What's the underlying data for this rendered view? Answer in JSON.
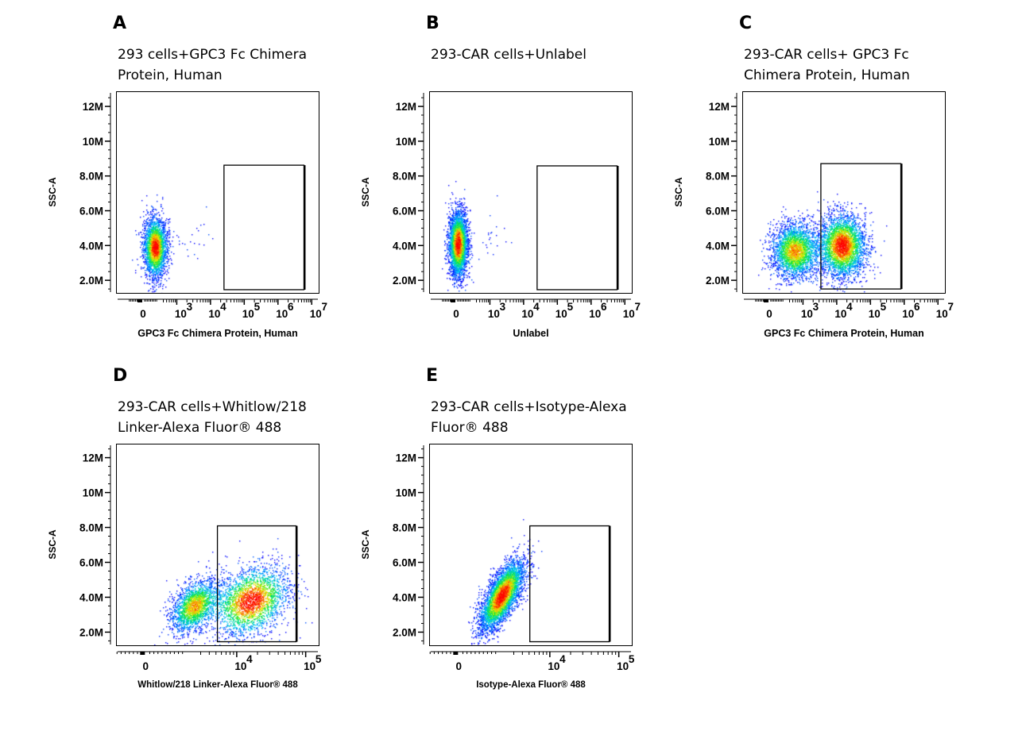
{
  "chart_data": [
    {
      "type": "scatter",
      "letter": "A",
      "title_lines": [
        "293 cells+GPC3 Fc Chimera",
        "Protein, Human"
      ],
      "xlabel": "GPC3 Fc Chimera Protein, Human",
      "ylabel": "SSC-A",
      "x_scale": "biexponential (display decades, 0 shown at 2)",
      "x_range": [
        1.2,
        7.23
      ],
      "y_range": [
        1.23,
        12.87
      ],
      "x_ticks": [
        {
          "v": 2,
          "label": "0",
          "exp": ""
        },
        {
          "v": 3,
          "label": "10",
          "exp": "3"
        },
        {
          "v": 4,
          "label": "10",
          "exp": "4"
        },
        {
          "v": 5,
          "label": "10",
          "exp": "5"
        },
        {
          "v": 6,
          "label": "10",
          "exp": "6"
        },
        {
          "v": 7,
          "label": "10",
          "exp": "7"
        }
      ],
      "y_ticks": [
        {
          "v": 2,
          "label": "2.0M"
        },
        {
          "v": 4,
          "label": "4.0M"
        },
        {
          "v": 6,
          "label": "6.0M"
        },
        {
          "v": 8,
          "label": "8.0M"
        },
        {
          "v": 10,
          "label": "10M"
        },
        {
          "v": 12,
          "label": "12M"
        }
      ],
      "gate": {
        "x": [
          4.4,
          6.77
        ],
        "y": [
          1.46,
          8.62
        ]
      },
      "populations": [
        {
          "x": 2.35,
          "y": 3.9,
          "sx": 0.17,
          "sy": 0.85,
          "rho": 0,
          "n": 2600
        },
        {
          "x": 3.4,
          "y": 4.6,
          "sx": 0.45,
          "sy": 0.7,
          "rho": 0,
          "n": 25
        }
      ]
    },
    {
      "type": "scatter",
      "letter": "B",
      "title_lines": [
        "293-CAR cells+Unlabel"
      ],
      "xlabel": "Unlabel",
      "ylabel": "SSC-A",
      "x_range": [
        1.2,
        7.23
      ],
      "y_range": [
        1.23,
        12.87
      ],
      "x_ticks": [
        {
          "v": 2,
          "label": "0",
          "exp": ""
        },
        {
          "v": 3,
          "label": "10",
          "exp": "3"
        },
        {
          "v": 4,
          "label": "10",
          "exp": "4"
        },
        {
          "v": 5,
          "label": "10",
          "exp": "5"
        },
        {
          "v": 6,
          "label": "10",
          "exp": "6"
        },
        {
          "v": 7,
          "label": "10",
          "exp": "7"
        }
      ],
      "y_ticks": [
        {
          "v": 2,
          "label": "2.0M"
        },
        {
          "v": 4,
          "label": "4.0M"
        },
        {
          "v": 6,
          "label": "6.0M"
        },
        {
          "v": 8,
          "label": "8.0M"
        },
        {
          "v": 10,
          "label": "10M"
        },
        {
          "v": 12,
          "label": "12M"
        }
      ],
      "gate": {
        "x": [
          4.4,
          6.77
        ],
        "y": [
          1.46,
          8.58
        ]
      },
      "populations": [
        {
          "x": 2.05,
          "y": 4.1,
          "sx": 0.14,
          "sy": 0.95,
          "rho": 0,
          "n": 3200
        },
        {
          "x": 2.9,
          "y": 4.6,
          "sx": 0.35,
          "sy": 0.6,
          "rho": 0,
          "n": 25
        }
      ]
    },
    {
      "type": "scatter",
      "letter": "C",
      "title_lines": [
        "293-CAR cells+  GPC3 Fc",
        "Chimera Protein, Human"
      ],
      "xlabel": "GPC3 Fc Chimera Protein, Human",
      "ylabel": "SSC-A",
      "x_range": [
        1.2,
        7.23
      ],
      "y_range": [
        1.23,
        12.87
      ],
      "x_ticks": [
        {
          "v": 2,
          "label": "0",
          "exp": ""
        },
        {
          "v": 3,
          "label": "10",
          "exp": "3"
        },
        {
          "v": 4,
          "label": "10",
          "exp": "4"
        },
        {
          "v": 5,
          "label": "10",
          "exp": "5"
        },
        {
          "v": 6,
          "label": "10",
          "exp": "6"
        },
        {
          "v": 7,
          "label": "10",
          "exp": "7"
        }
      ],
      "y_ticks": [
        {
          "v": 2,
          "label": "2.0M"
        },
        {
          "v": 4,
          "label": "4.0M"
        },
        {
          "v": 6,
          "label": "6.0M"
        },
        {
          "v": 8,
          "label": "8.0M"
        },
        {
          "v": 10,
          "label": "10M"
        },
        {
          "v": 12,
          "label": "12M"
        }
      ],
      "gate": {
        "x": [
          3.53,
          5.9
        ],
        "y": [
          1.5,
          8.71
        ]
      },
      "populations": [
        {
          "x": 2.75,
          "y": 3.7,
          "sx": 0.35,
          "sy": 0.8,
          "rho": 0,
          "n": 2600
        },
        {
          "x": 4.15,
          "y": 4.0,
          "sx": 0.35,
          "sy": 0.9,
          "rho": 0,
          "n": 3200
        }
      ]
    },
    {
      "type": "scatter",
      "letter": "D",
      "title_lines": [
        "293-CAR  cells+Whitlow/218",
        "Linker-Alexa Fluor® 488"
      ],
      "xlabel": "Whitlow/218 Linker-Alexa Fluor® 488",
      "ylabel": "SSC-A",
      "x_range": [
        2.25,
        5.2
      ],
      "y_range": [
        1.2,
        12.8
      ],
      "x_ticks": [
        {
          "v": 2.68,
          "label": "0",
          "exp": ""
        },
        {
          "v": 4,
          "label": "10",
          "exp": "4"
        },
        {
          "v": 5,
          "label": "10",
          "exp": "5"
        }
      ],
      "y_ticks": [
        {
          "v": 2,
          "label": "2.0M"
        },
        {
          "v": 4,
          "label": "4.0M"
        },
        {
          "v": 6,
          "label": "6.0M"
        },
        {
          "v": 8,
          "label": "8.0M"
        },
        {
          "v": 10,
          "label": "10M"
        },
        {
          "v": 12,
          "label": "12M"
        }
      ],
      "gate": {
        "x": [
          3.72,
          4.86
        ],
        "y": [
          1.45,
          8.09
        ]
      },
      "populations": [
        {
          "x": 3.38,
          "y": 3.5,
          "sx": 0.17,
          "sy": 0.75,
          "rho": 0.4,
          "n": 1900
        },
        {
          "x": 4.2,
          "y": 3.8,
          "sx": 0.28,
          "sy": 1.0,
          "rho": 0.3,
          "n": 2400
        }
      ]
    },
    {
      "type": "scatter",
      "letter": "E",
      "title_lines": [
        "293-CAR    cells+Isotype-Alexa",
        "Fluor® 488"
      ],
      "xlabel": "Isotype-Alexa Fluor® 488",
      "ylabel": "SSC-A",
      "x_range": [
        2.25,
        5.2
      ],
      "y_range": [
        1.2,
        12.8
      ],
      "x_ticks": [
        {
          "v": 2.68,
          "label": "0",
          "exp": ""
        },
        {
          "v": 4,
          "label": "10",
          "exp": "4"
        },
        {
          "v": 5,
          "label": "10",
          "exp": "5"
        }
      ],
      "y_ticks": [
        {
          "v": 2,
          "label": "2.0M"
        },
        {
          "v": 4,
          "label": "4.0M"
        },
        {
          "v": 6,
          "label": "6.0M"
        },
        {
          "v": 8,
          "label": "8.0M"
        },
        {
          "v": 10,
          "label": "10M"
        },
        {
          "v": 12,
          "label": "12M"
        }
      ],
      "gate": {
        "x": [
          3.71,
          4.86
        ],
        "y": [
          1.45,
          8.09
        ]
      },
      "populations": [
        {
          "x": 3.3,
          "y": 4.1,
          "sx": 0.16,
          "sy": 1.0,
          "rho": 0.7,
          "n": 4200
        }
      ]
    }
  ]
}
